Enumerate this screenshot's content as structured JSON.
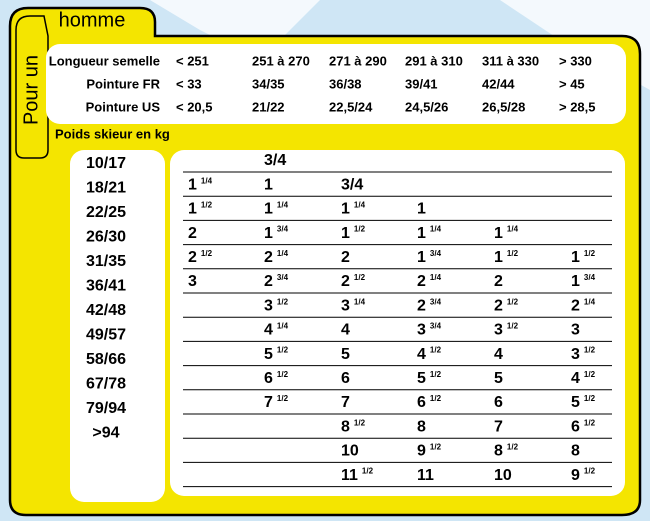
{
  "tab": {
    "line1": "Pour un",
    "line2": "homme"
  },
  "header": {
    "rows": [
      {
        "label": "Longueur semelle",
        "values": [
          "< 251",
          "251 à 270",
          "271 à 290",
          "291 à 310",
          "311 à 330",
          "> 330"
        ]
      },
      {
        "label": "Pointure FR",
        "values": [
          "< 33",
          "34/35",
          "36/38",
          "39/41",
          "42/44",
          "> 45"
        ]
      },
      {
        "label": "Pointure US",
        "values": [
          "< 20,5",
          "21/22",
          "22,5/24",
          "24,5/26",
          "26,5/28",
          "> 28,5"
        ]
      }
    ]
  },
  "weight_label": "Poids skieur en kg",
  "weights": [
    "10/17",
    "18/21",
    "22/25",
    "26/30",
    "31/35",
    "36/41",
    "42/48",
    "49/57",
    "58/66",
    "67/78",
    "79/94",
    ">94"
  ],
  "table": {
    "rows": [
      [
        [],
        [
          "3/4"
        ],
        [],
        [],
        [],
        []
      ],
      [
        [
          "1",
          "1/4"
        ],
        [
          "1"
        ],
        [
          "3/4"
        ],
        [],
        [],
        []
      ],
      [
        [
          "1",
          "1/2"
        ],
        [
          "1",
          "1/4"
        ],
        [
          "1",
          "1/4"
        ],
        [
          "1"
        ],
        [],
        []
      ],
      [
        [
          "2"
        ],
        [
          "1",
          "3/4"
        ],
        [
          "1",
          "1/2"
        ],
        [
          "1",
          "1/4"
        ],
        [
          "1",
          "1/4"
        ],
        []
      ],
      [
        [
          "2",
          "1/2"
        ],
        [
          "2",
          "1/4"
        ],
        [
          "2"
        ],
        [
          "1",
          "3/4"
        ],
        [
          "1",
          "1/2"
        ],
        [
          "1",
          "1/2"
        ]
      ],
      [
        [
          "3"
        ],
        [
          "2",
          "3/4"
        ],
        [
          "2",
          "1/2"
        ],
        [
          "2",
          "1/4"
        ],
        [
          "2"
        ],
        [
          "1",
          "3/4"
        ]
      ],
      [
        [],
        [
          "3",
          "1/2"
        ],
        [
          "3",
          "1/4"
        ],
        [
          "2",
          "3/4"
        ],
        [
          "2",
          "1/2"
        ],
        [
          "2",
          "1/4"
        ]
      ],
      [
        [],
        [
          "4",
          "1/4"
        ],
        [
          "4"
        ],
        [
          "3",
          "3/4"
        ],
        [
          "3",
          "1/2"
        ],
        [
          "3"
        ]
      ],
      [
        [],
        [
          "5",
          "1/2"
        ],
        [
          "5"
        ],
        [
          "4",
          "1/2"
        ],
        [
          "4"
        ],
        [
          "3",
          "1/2"
        ]
      ],
      [
        [],
        [
          "6",
          "1/2"
        ],
        [
          "6"
        ],
        [
          "5",
          "1/2"
        ],
        [
          "5"
        ],
        [
          "4",
          "1/2"
        ]
      ],
      [
        [],
        [
          "7",
          "1/2"
        ],
        [
          "7"
        ],
        [
          "6",
          "1/2"
        ],
        [
          "6"
        ],
        [
          "5",
          "1/2"
        ]
      ],
      [
        [],
        [],
        [
          "8",
          "1/2"
        ],
        [
          "8"
        ],
        [
          "7"
        ],
        [
          "6",
          "1/2"
        ]
      ],
      [
        [],
        [],
        [
          "10"
        ],
        [
          "9",
          "1/2"
        ],
        [
          "8",
          "1/2"
        ],
        [
          "8"
        ]
      ],
      [
        [],
        [],
        [
          "11",
          "1/2"
        ],
        [
          "11"
        ],
        [
          "10"
        ],
        [
          "9",
          "1/2"
        ]
      ]
    ]
  }
}
